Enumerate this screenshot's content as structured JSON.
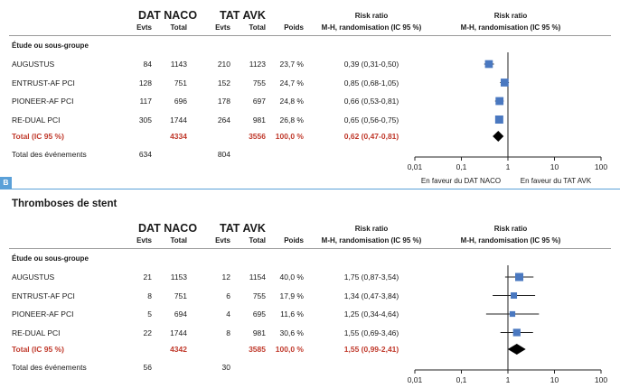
{
  "panel_b_label": "B",
  "panel_b_title": "Thromboses de stent",
  "headers": {
    "dat": "DAT NACO",
    "tat": "TAT AVK",
    "evts": "Evts",
    "total": "Total",
    "poids": "Poids",
    "rr_title": "Risk ratio",
    "rr_sub": "M-H, randomisation (IC 95 %)",
    "subgroup": "Étude ou sous-groupe"
  },
  "favour": {
    "left": "En faveur du DAT NACO",
    "right": "En faveur du TAT AVK"
  },
  "chart_data": [
    {
      "type": "forest",
      "scale": "log",
      "xlim": [
        0.01,
        100
      ],
      "ticks": [
        "0,01",
        "0,1",
        "1",
        "10",
        "100"
      ],
      "tick_values": [
        0.01,
        0.1,
        1,
        10,
        100
      ],
      "rows": [
        {
          "study": "AUGUSTUS",
          "dat_evts": "84",
          "dat_total": "1143",
          "tat_evts": "210",
          "tat_total": "1123",
          "weight": "23,7 %",
          "rr_text": "0,39 (0,31-0,50)",
          "rr": 0.39,
          "lo": 0.31,
          "hi": 0.5,
          "w": 23.7
        },
        {
          "study": "ENTRUST-AF PCI",
          "dat_evts": "128",
          "dat_total": "751",
          "tat_evts": "152",
          "tat_total": "755",
          "weight": "24,7 %",
          "rr_text": "0,85 (0,68-1,05)",
          "rr": 0.85,
          "lo": 0.68,
          "hi": 1.05,
          "w": 24.7
        },
        {
          "study": "PIONEER-AF PCI",
          "dat_evts": "117",
          "dat_total": "696",
          "tat_evts": "178",
          "tat_total": "697",
          "weight": "24,8 %",
          "rr_text": "0,66 (0,53-0,81)",
          "rr": 0.66,
          "lo": 0.53,
          "hi": 0.81,
          "w": 24.8
        },
        {
          "study": "RE-DUAL PCI",
          "dat_evts": "305",
          "dat_total": "1744",
          "tat_evts": "264",
          "tat_total": "981",
          "weight": "26,8 %",
          "rr_text": "0,65 (0,56-0,75)",
          "rr": 0.65,
          "lo": 0.56,
          "hi": 0.75,
          "w": 26.8
        }
      ],
      "total": {
        "label": "Total (IC 95 %)",
        "dat_total": "4334",
        "tat_total": "3556",
        "weight": "100,0 %",
        "rr_text": "0,62 (0,47-0,81)",
        "rr": 0.62,
        "lo": 0.47,
        "hi": 0.81
      },
      "events": {
        "label": "Total des événements",
        "dat": "634",
        "tat": "804"
      }
    },
    {
      "type": "forest",
      "scale": "log",
      "xlim": [
        0.01,
        100
      ],
      "ticks": [
        "0,01",
        "0,1",
        "1",
        "10",
        "100"
      ],
      "tick_values": [
        0.01,
        0.1,
        1,
        10,
        100
      ],
      "rows": [
        {
          "study": "AUGUSTUS",
          "dat_evts": "21",
          "dat_total": "1153",
          "tat_evts": "12",
          "tat_total": "1154",
          "weight": "40,0 %",
          "rr_text": "1,75 (0,87-3,54)",
          "rr": 1.75,
          "lo": 0.87,
          "hi": 3.54,
          "w": 40.0
        },
        {
          "study": "ENTRUST-AF PCI",
          "dat_evts": "8",
          "dat_total": "751",
          "tat_evts": "6",
          "tat_total": "755",
          "weight": "17,9 %",
          "rr_text": "1,34 (0,47-3,84)",
          "rr": 1.34,
          "lo": 0.47,
          "hi": 3.84,
          "w": 17.9
        },
        {
          "study": "PIONEER-AF PCI",
          "dat_evts": "5",
          "dat_total": "694",
          "tat_evts": "4",
          "tat_total": "695",
          "weight": "11,6 %",
          "rr_text": "1,25 (0,34-4,64)",
          "rr": 1.25,
          "lo": 0.34,
          "hi": 4.64,
          "w": 11.6
        },
        {
          "study": "RE-DUAL PCI",
          "dat_evts": "22",
          "dat_total": "1744",
          "tat_evts": "8",
          "tat_total": "981",
          "weight": "30,6 %",
          "rr_text": "1,55 (0,69-3,46)",
          "rr": 1.55,
          "lo": 0.69,
          "hi": 3.46,
          "w": 30.6
        }
      ],
      "total": {
        "label": "Total (IC 95 %)",
        "dat_total": "4342",
        "tat_total": "3585",
        "weight": "100,0 %",
        "rr_text": "1,55 (0,99-2,41)",
        "rr": 1.55,
        "lo": 0.99,
        "hi": 2.41
      },
      "events": {
        "label": "Total des événements",
        "dat": "56",
        "tat": "30"
      }
    }
  ],
  "colors": {
    "marker": "#4a78c0",
    "total_text": "#c0392b",
    "accent": "#5aa0d8"
  }
}
